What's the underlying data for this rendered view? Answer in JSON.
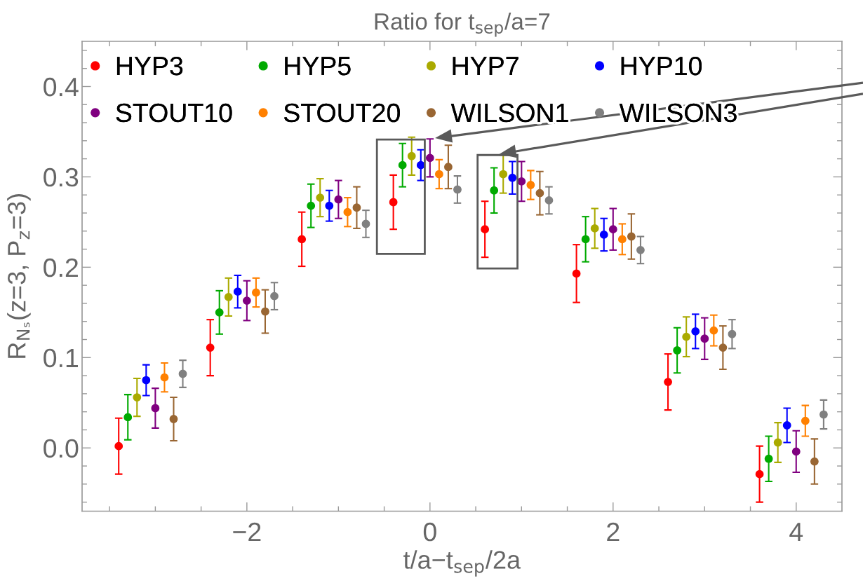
{
  "chart_data": {
    "type": "scatter",
    "title": "Ratio for t$_{sep}$/a=7",
    "xlabel": "t/a−t$_{sep}$/2a",
    "ylabel": "R$_{Nₛ}$(z=3, P$_{z}$=3)",
    "xlim": [
      -3.8,
      4.5
    ],
    "ylim": [
      -0.07,
      0.45
    ],
    "xticks": [
      {
        "value": -3.5,
        "label": null
      },
      {
        "value": -3,
        "label": null
      },
      {
        "value": -2.5,
        "label": null
      },
      {
        "value": -2,
        "label": "−2"
      },
      {
        "value": -1.5,
        "label": null
      },
      {
        "value": -1,
        "label": null
      },
      {
        "value": -0.5,
        "label": null
      },
      0,
      {
        "value": 0.5,
        "label": null
      },
      {
        "value": 1,
        "label": null
      },
      {
        "value": 1.5,
        "label": null
      },
      2,
      {
        "value": 2.5,
        "label": null
      },
      {
        "value": 3,
        "label": null
      },
      {
        "value": 3.5,
        "label": null
      },
      4
    ],
    "yticks": [
      {
        "value": -0.06,
        "label": null
      },
      {
        "value": -0.04,
        "label": null
      },
      {
        "value": -0.02,
        "label": null
      },
      {
        "value": 0,
        "label": "0.0"
      },
      {
        "value": 0.02,
        "label": null
      },
      {
        "value": 0.04,
        "label": null
      },
      {
        "value": 0.06,
        "label": null
      },
      {
        "value": 0.08,
        "label": null
      },
      0.1,
      {
        "value": 0.12,
        "label": null
      },
      {
        "value": 0.14,
        "label": null
      },
      {
        "value": 0.16,
        "label": null
      },
      {
        "value": 0.18,
        "label": null
      },
      0.2,
      {
        "value": 0.22,
        "label": null
      },
      {
        "value": 0.24,
        "label": null
      },
      {
        "value": 0.26,
        "label": null
      },
      {
        "value": 0.28,
        "label": null
      },
      0.3,
      {
        "value": 0.32,
        "label": null
      },
      {
        "value": 0.34,
        "label": null
      },
      {
        "value": 0.36,
        "label": null
      },
      {
        "value": 0.38,
        "label": null
      },
      0.4,
      {
        "value": 0.42,
        "label": null
      },
      {
        "value": 0.44,
        "label": null
      }
    ],
    "legend": "top left",
    "marker": "circle",
    "series": [
      {
        "name": "HYP3",
        "color": "#ff0000",
        "x": [
          -3.4,
          -2.4,
          -1.4,
          -0.4,
          0.6,
          1.6,
          2.6,
          3.6
        ],
        "values": [
          0.002,
          0.111,
          0.231,
          0.272,
          0.242,
          0.193,
          0.073,
          -0.029
        ],
        "errors": [
          0.031,
          0.031,
          0.03,
          0.03,
          0.031,
          0.032,
          0.031,
          0.031
        ]
      },
      {
        "name": "HYP5",
        "color": "#00aa00",
        "x": [
          -3.3,
          -2.3,
          -1.3,
          -0.3,
          0.7,
          1.7,
          2.7,
          3.7
        ],
        "values": [
          0.034,
          0.15,
          0.268,
          0.313,
          0.285,
          0.231,
          0.108,
          -0.012
        ],
        "errors": [
          0.025,
          0.024,
          0.024,
          0.024,
          0.025,
          0.025,
          0.025,
          0.025
        ]
      },
      {
        "name": "HYP7",
        "color": "#aaaa00",
        "x": [
          -3.2,
          -2.2,
          -1.2,
          -0.2,
          0.8,
          1.8,
          2.8,
          3.8
        ],
        "values": [
          0.056,
          0.167,
          0.277,
          0.323,
          0.303,
          0.243,
          0.123,
          0.006
        ],
        "errors": [
          0.021,
          0.021,
          0.021,
          0.021,
          0.021,
          0.022,
          0.022,
          0.022
        ]
      },
      {
        "name": "HYP10",
        "color": "#0000ff",
        "x": [
          -3.1,
          -2.1,
          -1.1,
          -0.1,
          0.9,
          1.9,
          2.9,
          3.9
        ],
        "values": [
          0.075,
          0.173,
          0.268,
          0.313,
          0.299,
          0.236,
          0.129,
          0.025
        ],
        "errors": [
          0.017,
          0.018,
          0.017,
          0.017,
          0.018,
          0.018,
          0.019,
          0.019
        ]
      },
      {
        "name": "STOUT10",
        "color": "#800080",
        "x": [
          -3.0,
          -2.0,
          -1.0,
          0.0,
          1.0,
          2.0,
          3.0,
          4.0
        ],
        "values": [
          0.044,
          0.163,
          0.275,
          0.321,
          0.295,
          0.242,
          0.121,
          -0.004
        ],
        "errors": [
          0.022,
          0.022,
          0.021,
          0.021,
          0.022,
          0.023,
          0.023,
          0.023
        ]
      },
      {
        "name": "STOUT20",
        "color": "#ff8000",
        "x": [
          -2.9,
          -1.9,
          -0.9,
          0.1,
          1.1,
          2.1,
          3.1,
          4.1
        ],
        "values": [
          0.078,
          0.172,
          0.261,
          0.303,
          0.291,
          0.231,
          0.13,
          0.03
        ],
        "errors": [
          0.016,
          0.016,
          0.016,
          0.016,
          0.016,
          0.017,
          0.017,
          0.017
        ]
      },
      {
        "name": "WILSON1",
        "color": "#996633",
        "x": [
          -2.8,
          -1.8,
          -0.8,
          0.2,
          1.2,
          2.2,
          3.2,
          4.2
        ],
        "values": [
          0.032,
          0.151,
          0.266,
          0.311,
          0.282,
          0.234,
          0.111,
          -0.015
        ],
        "errors": [
          0.024,
          0.024,
          0.023,
          0.024,
          0.024,
          0.025,
          0.024,
          0.025
        ]
      },
      {
        "name": "WILSON3",
        "color": "#808080",
        "x": [
          -2.7,
          -1.7,
          -0.7,
          0.3,
          1.3,
          2.3,
          3.3,
          4.3
        ],
        "values": [
          0.082,
          0.168,
          0.248,
          0.286,
          0.274,
          0.219,
          0.126,
          0.037
        ],
        "errors": [
          0.015,
          0.015,
          0.015,
          0.015,
          0.015,
          0.015,
          0.016,
          0.016
        ]
      }
    ]
  }
}
